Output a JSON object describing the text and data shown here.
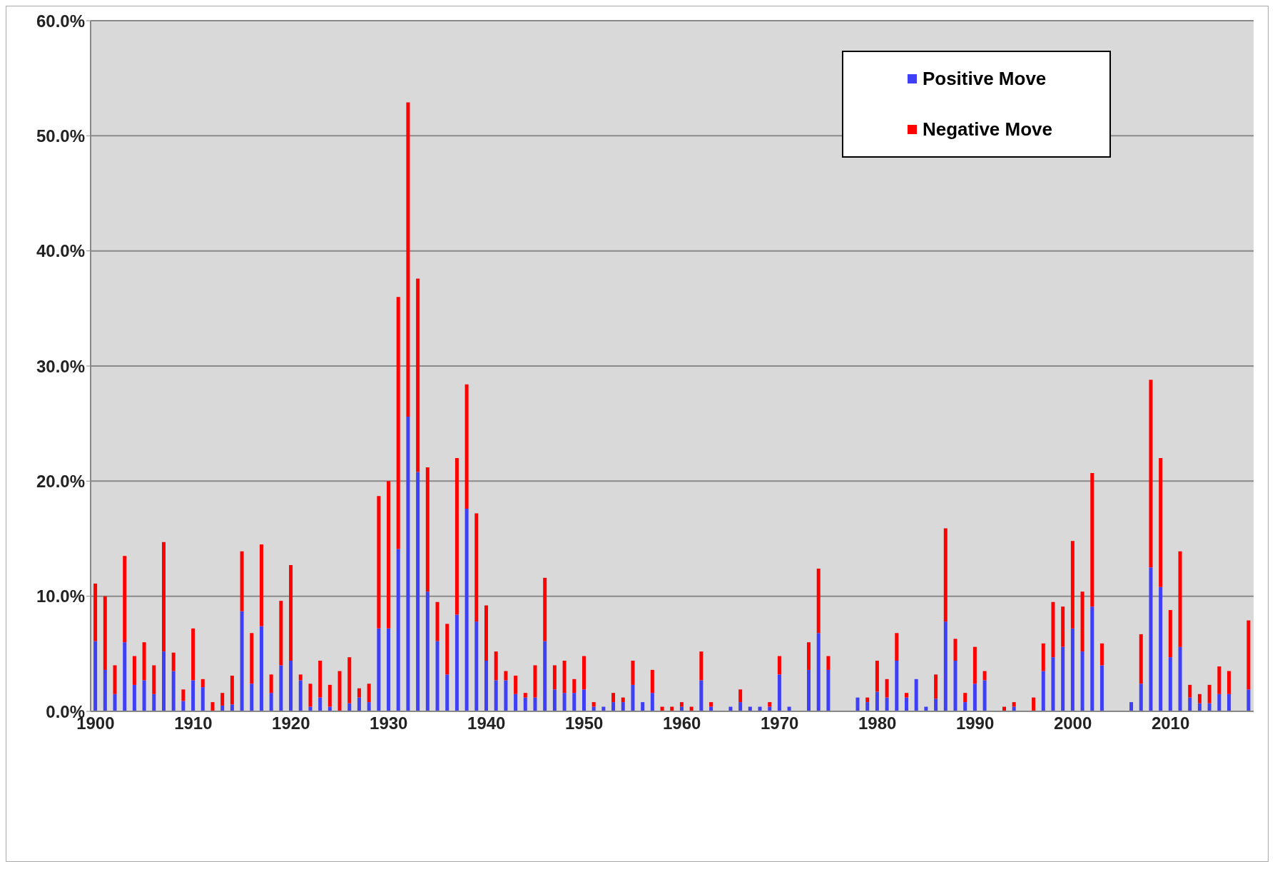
{
  "chart_data": {
    "type": "bar",
    "stacked": true,
    "grid": "y",
    "legend": "top right",
    "categories": [
      "1900",
      null,
      null,
      null,
      null,
      null,
      null,
      null,
      null,
      null,
      "1910",
      null,
      null,
      null,
      null,
      null,
      null,
      null,
      null,
      null,
      "1920",
      null,
      null,
      null,
      null,
      null,
      null,
      null,
      null,
      null,
      "1930",
      null,
      null,
      null,
      null,
      null,
      null,
      null,
      null,
      null,
      "1940",
      null,
      null,
      null,
      null,
      null,
      null,
      null,
      null,
      null,
      "1950",
      null,
      null,
      null,
      null,
      null,
      null,
      null,
      null,
      null,
      "1960",
      null,
      null,
      null,
      null,
      null,
      null,
      null,
      null,
      null,
      "1970",
      null,
      null,
      null,
      null,
      null,
      null,
      null,
      null,
      null,
      "1980",
      null,
      null,
      null,
      null,
      null,
      null,
      null,
      null,
      null,
      "1990",
      null,
      null,
      null,
      null,
      null,
      null,
      null,
      null,
      null,
      "2000",
      null,
      null,
      null,
      null,
      null,
      null,
      null,
      null,
      null,
      "2010",
      null,
      null,
      null,
      null,
      null,
      null,
      null,
      null
    ],
    "ylim": [
      0,
      60
    ],
    "yticks": [
      {
        "value": 0,
        "label": "0.0%"
      },
      {
        "value": 10,
        "label": "10.0%"
      },
      {
        "value": 20,
        "label": "20.0%"
      },
      {
        "value": 30,
        "label": "30.0%"
      },
      {
        "value": 40,
        "label": "40.0%"
      },
      {
        "value": 50,
        "label": "50.0%"
      },
      {
        "value": 60,
        "label": "60.0%"
      }
    ],
    "series": [
      {
        "name": "Positive Move",
        "color": "#3f3ff5",
        "values": [
          6.1,
          3.6,
          1.5,
          6.0,
          2.3,
          2.7,
          1.5,
          5.2,
          3.5,
          0.9,
          2.7,
          2.1,
          0,
          0.5,
          0.6,
          8.7,
          2.4,
          7.4,
          1.6,
          4.0,
          4.4,
          2.7,
          0.4,
          1.2,
          0.4,
          0,
          0.7,
          1.2,
          0.8,
          7.2,
          7.2,
          14.1,
          25.6,
          20.8,
          10.4,
          6.1,
          3.2,
          8.4,
          17.6,
          7.8,
          4.4,
          2.7,
          2.7,
          1.5,
          1.2,
          1.2,
          6.1,
          1.9,
          1.6,
          1.6,
          1.9,
          0.4,
          0.4,
          0.8,
          0.8,
          2.3,
          0.8,
          1.6,
          0,
          0,
          0.4,
          0,
          2.7,
          0.4,
          null,
          0.4,
          0.8,
          0.4,
          0.4,
          0.4,
          3.2,
          0.4,
          null,
          3.6,
          6.8,
          3.6,
          null,
          null,
          1.2,
          0.8,
          1.7,
          1.2,
          4.4,
          1.2,
          2.8,
          0.4,
          1.1,
          7.8,
          4.4,
          0.8,
          2.4,
          2.7,
          null,
          0,
          0.4,
          null,
          0,
          3.5,
          4.7,
          5.6,
          7.2,
          5.2,
          9.1,
          4.0,
          null,
          null,
          0.8,
          2.4,
          12.5,
          10.8,
          4.7,
          5.6,
          1.2,
          0.7,
          0.7,
          1.5,
          1.5,
          null,
          1.9
        ]
      },
      {
        "name": "Negative Move",
        "color": "#ff0000",
        "values": [
          5.0,
          6.4,
          2.5,
          7.5,
          2.5,
          3.3,
          2.5,
          9.5,
          1.6,
          1.0,
          4.5,
          0.7,
          0.8,
          1.1,
          2.5,
          5.2,
          4.4,
          7.1,
          1.6,
          5.6,
          8.3,
          0.5,
          2.0,
          3.2,
          1.9,
          3.5,
          4.0,
          0.8,
          1.6,
          11.5,
          12.8,
          21.9,
          27.3,
          16.8,
          10.8,
          3.4,
          4.4,
          13.6,
          10.8,
          9.4,
          4.8,
          2.5,
          0.8,
          1.6,
          0.4,
          2.8,
          5.5,
          2.1,
          2.8,
          1.2,
          2.9,
          0.4,
          0,
          0.8,
          0.4,
          2.1,
          0,
          2.0,
          0.4,
          0.4,
          0.4,
          0.4,
          2.5,
          0.4,
          null,
          0,
          1.1,
          0,
          0,
          0.4,
          1.6,
          0,
          null,
          2.4,
          5.6,
          1.2,
          null,
          null,
          0,
          0.4,
          2.7,
          1.6,
          2.4,
          0.4,
          0,
          0,
          2.1,
          8.1,
          1.9,
          0.8,
          3.2,
          0.8,
          null,
          0.4,
          0.4,
          null,
          1.2,
          2.4,
          4.8,
          3.5,
          7.6,
          5.2,
          11.6,
          1.9,
          null,
          null,
          0,
          4.3,
          16.3,
          11.2,
          4.1,
          8.3,
          1.1,
          0.8,
          1.6,
          2.4,
          2.0,
          null,
          6.0
        ]
      }
    ]
  }
}
